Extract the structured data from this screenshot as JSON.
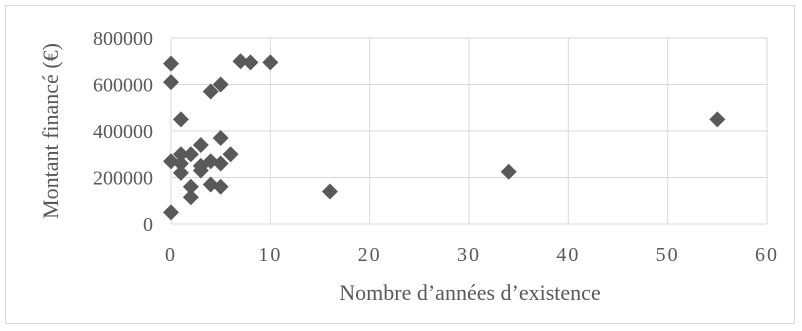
{
  "chart_data": {
    "type": "scatter",
    "title": "",
    "xlabel": "Nombre d’années d’existence",
    "ylabel": "Montant financé (€)",
    "xlim": [
      0,
      60
    ],
    "ylim": [
      0,
      800000
    ],
    "x_ticks": [
      "0",
      "10",
      "20",
      "30",
      "40",
      "50",
      "60"
    ],
    "y_ticks": [
      "0",
      "200000",
      "400000",
      "600000",
      "800000"
    ],
    "grid": true,
    "legend": "none",
    "marker": "diamond",
    "marker_color": "#595959",
    "series": [
      {
        "points": [
          {
            "x": 0,
            "y": 690000
          },
          {
            "x": 0,
            "y": 610000
          },
          {
            "x": 0,
            "y": 270000
          },
          {
            "x": 0,
            "y": 50000
          },
          {
            "x": 1,
            "y": 450000
          },
          {
            "x": 1,
            "y": 300000
          },
          {
            "x": 1,
            "y": 260000
          },
          {
            "x": 1,
            "y": 220000
          },
          {
            "x": 2,
            "y": 300000
          },
          {
            "x": 2,
            "y": 160000
          },
          {
            "x": 2,
            "y": 115000
          },
          {
            "x": 3,
            "y": 340000
          },
          {
            "x": 3,
            "y": 250000
          },
          {
            "x": 3,
            "y": 230000
          },
          {
            "x": 4,
            "y": 570000
          },
          {
            "x": 4,
            "y": 270000
          },
          {
            "x": 4,
            "y": 170000
          },
          {
            "x": 5,
            "y": 600000
          },
          {
            "x": 5,
            "y": 370000
          },
          {
            "x": 5,
            "y": 260000
          },
          {
            "x": 5,
            "y": 160000
          },
          {
            "x": 6,
            "y": 300000
          },
          {
            "x": 7,
            "y": 700000
          },
          {
            "x": 8,
            "y": 695000
          },
          {
            "x": 10,
            "y": 695000
          },
          {
            "x": 16,
            "y": 140000
          },
          {
            "x": 34,
            "y": 225000
          },
          {
            "x": 55,
            "y": 450000
          }
        ]
      }
    ]
  }
}
